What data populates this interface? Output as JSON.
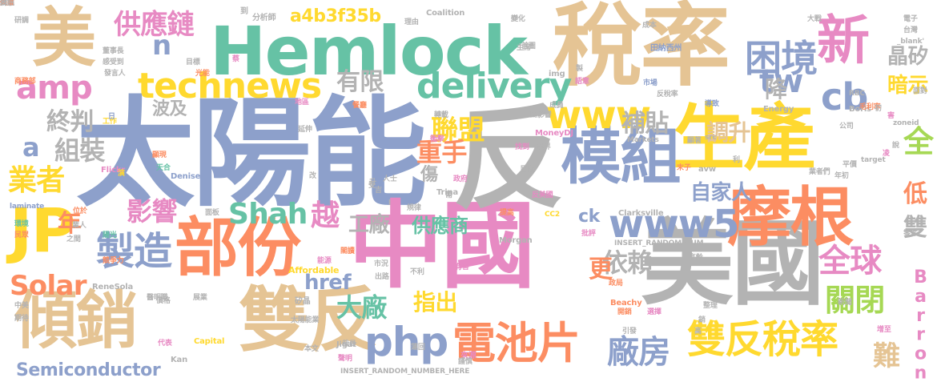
{
  "words": [
    {
      "text": "太陽能",
      "color": "#8da0cb"
    },
    {
      "text": "稅率",
      "color": "#e5c494"
    },
    {
      "text": "中國",
      "color": "#e78ac3"
    },
    {
      "text": "反",
      "color": "#b3b3b3"
    },
    {
      "text": "美國",
      "color": "#b3b3b3"
    },
    {
      "text": "Hemlock",
      "color": "#66c2a5"
    },
    {
      "text": "生產",
      "color": "#ffd92f"
    },
    {
      "text": "摩根",
      "color": "#fc8d62"
    },
    {
      "text": "雙反",
      "color": "#e5c494"
    },
    {
      "text": "部份",
      "color": "#fc8d62"
    },
    {
      "text": "傾銷",
      "color": "#e5c494"
    },
    {
      "text": "模組",
      "color": "#8da0cb"
    },
    {
      "text": "美",
      "color": "#e5c494"
    },
    {
      "text": "新",
      "color": "#e78ac3"
    },
    {
      "text": "JP",
      "color": "#ffd92f"
    },
    {
      "text": "technews",
      "color": "#ffd92f"
    },
    {
      "text": "delivery",
      "color": "#66c2a5"
    },
    {
      "text": "電池片",
      "color": "#fc8d62"
    },
    {
      "text": "雙反稅率",
      "color": "#ffd92f"
    },
    {
      "text": "www5",
      "color": "#8da0cb"
    },
    {
      "text": "www",
      "color": "#ffd92f"
    },
    {
      "text": "製造",
      "color": "#8da0cb"
    },
    {
      "text": "amp",
      "color": "#e78ac3"
    },
    {
      "text": "php",
      "color": "#8da0cb"
    },
    {
      "text": "困境",
      "color": "#8da0cb"
    },
    {
      "text": "cb",
      "color": "#8da0cb"
    },
    {
      "text": "tw",
      "color": "#8da0cb"
    },
    {
      "text": "全球",
      "color": "#e78ac3"
    },
    {
      "text": "關閉",
      "color": "#a6d854"
    },
    {
      "text": "廠房",
      "color": "#8da0cb"
    },
    {
      "text": "Solar",
      "color": "#fc8d62"
    },
    {
      "text": "Shah",
      "color": "#66c2a5"
    },
    {
      "text": "業者",
      "color": "#ffd92f"
    },
    {
      "text": "供應鏈",
      "color": "#e78ac3"
    },
    {
      "text": "聯盟",
      "color": "#ffd92f"
    },
    {
      "text": "有限",
      "color": "#b3b3b3"
    },
    {
      "text": "終判",
      "color": "#b3b3b3"
    },
    {
      "text": "組裝",
      "color": "#b3b3b3"
    },
    {
      "text": "影響",
      "color": "#e78ac3"
    },
    {
      "text": "越",
      "color": "#e78ac3"
    },
    {
      "text": "年",
      "color": "#fc8d62"
    },
    {
      "text": "a",
      "color": "#8da0cb"
    },
    {
      "text": "n",
      "color": "#8da0cb"
    },
    {
      "text": "a4b3f35b",
      "color": "#ffd92f"
    },
    {
      "text": "補貼",
      "color": "#b3b3b3"
    },
    {
      "text": "自家人",
      "color": "#8da0cb"
    },
    {
      "text": "大廠",
      "color": "#66c2a5"
    },
    {
      "text": "依賴",
      "color": "#b3b3b3"
    },
    {
      "text": "工廠",
      "color": "#b3b3b3"
    },
    {
      "text": "供應商",
      "color": "#66c2a5"
    },
    {
      "text": "重手",
      "color": "#fc8d62"
    },
    {
      "text": "指出",
      "color": "#ffd92f"
    },
    {
      "text": "href",
      "color": "#8da0cb"
    },
    {
      "text": "Semiconductor",
      "color": "#8da0cb"
    },
    {
      "text": "調升",
      "color": "#e5c494"
    },
    {
      "text": "難",
      "color": "#e5c494"
    },
    {
      "text": "全",
      "color": "#a6d854"
    },
    {
      "text": "低",
      "color": "#fc8d62"
    },
    {
      "text": "雙",
      "color": "#b3b3b3"
    },
    {
      "text": "晶矽",
      "color": "#b3b3b3"
    },
    {
      "text": "暗示",
      "color": "#ffd92f"
    },
    {
      "text": "Barron",
      "color": "#e78ac3"
    },
    {
      "text": "降",
      "color": "#b3b3b3"
    },
    {
      "text": "波及",
      "color": "#b3b3b3"
    },
    {
      "text": "傷",
      "color": "#b3b3b3"
    },
    {
      "text": "更",
      "color": "#fc8d62"
    },
    {
      "text": "ck",
      "color": "#8da0cb"
    },
    {
      "text": "INSERT_RANDOM_NUMBER_HERE",
      "color": "#b3b3b3"
    },
    {
      "text": "INSERT_RANDOM_NUM",
      "color": "#b3b3b3"
    },
    {
      "text": "Clarksville",
      "color": "#b3b3b3"
    },
    {
      "text": "Morgan",
      "color": "#b3b3b3"
    },
    {
      "text": "Affordable",
      "color": "#ffd92f"
    },
    {
      "text": "ReneSola",
      "color": "#b3b3b3"
    },
    {
      "text": "Trina",
      "color": "#b3b3b3"
    },
    {
      "text": "Denise",
      "color": "#8da0cb"
    },
    {
      "text": "Capital",
      "color": "#ffd92f"
    },
    {
      "text": "Energy",
      "color": "#b3b3b3"
    },
    {
      "text": "Coalition",
      "color": "#b3b3b3"
    },
    {
      "text": "MoneyDJ",
      "color": "#e78ac3"
    },
    {
      "text": "Markets",
      "color": "#b3b3b3"
    },
    {
      "text": "Beachy",
      "color": "#fc8d62"
    },
    {
      "text": "Jigar",
      "color": "#b3b3b3"
    },
    {
      "text": "Kan",
      "color": "#b3b3b3"
    },
    {
      "text": "Flickr",
      "color": "#e78ac3"
    },
    {
      "text": "zoneid",
      "color": "#b3b3b3"
    },
    {
      "text": "_blank'",
      "color": "#b3b3b3"
    },
    {
      "text": "Boris",
      "color": "#b3b3b3"
    },
    {
      "text": "laminate",
      "color": "#8da0cb"
    },
    {
      "text": "target",
      "color": "#b3b3b3"
    },
    {
      "text": "avw",
      "color": "#b3b3b3"
    },
    {
      "text": "src",
      "color": "#b3b3b3"
    },
    {
      "text": "img",
      "color": "#b3b3b3"
    },
    {
      "text": "RBC",
      "color": "#b3b3b3"
    },
    {
      "text": "CC2",
      "color": "#ffd92f"
    },
    {
      "text": "分析師",
      "color": "#b3b3b3"
    },
    {
      "text": "研調",
      "color": "#b3b3b3"
    },
    {
      "text": "董事長",
      "color": "#b3b3b3"
    },
    {
      "text": "感受到",
      "color": "#b3b3b3"
    },
    {
      "text": "發言人",
      "color": "#b3b3b3"
    },
    {
      "text": "商務部",
      "color": "#fc8d62"
    },
    {
      "text": "工作",
      "color": "#ffd92f"
    },
    {
      "text": "顯現",
      "color": "#fc8d62"
    },
    {
      "text": "天合",
      "color": "#66c2a5"
    },
    {
      "text": "陽光",
      "color": "#66c2a5"
    },
    {
      "text": "競爭力",
      "color": "#fc8d62"
    },
    {
      "text": "環境",
      "color": "#66c2a5"
    },
    {
      "text": "民眾",
      "color": "#fc8d62"
    },
    {
      "text": "餐廳",
      "color": "#fc8d62"
    },
    {
      "text": "地區",
      "color": "#e78ac3"
    },
    {
      "text": "延伸",
      "color": "#b3b3b3"
    },
    {
      "text": "找到",
      "color": "#e78ac3"
    },
    {
      "text": "業界",
      "color": "#b3b3b3"
    },
    {
      "text": "國際",
      "color": "#b3b3b3"
    },
    {
      "text": "反美國",
      "color": "#e78ac3"
    },
    {
      "text": "提高",
      "color": "#fc8d62"
    },
    {
      "text": "批評",
      "color": "#e78ac3"
    },
    {
      "text": "反稅率",
      "color": "#b3b3b3"
    },
    {
      "text": "市場",
      "color": "#8da0cb"
    },
    {
      "text": "田納西州",
      "color": "#8da0cb"
    },
    {
      "text": "成員",
      "color": "#b3b3b3"
    },
    {
      "text": "高齡",
      "color": "#b3b3b3"
    },
    {
      "text": "新聞",
      "color": "#b3b3b3"
    },
    {
      "text": "來源",
      "color": "#e78ac3"
    },
    {
      "text": "聲明",
      "color": "#e78ac3"
    },
    {
      "text": "太陽能業",
      "color": "#b3b3b3"
    },
    {
      "text": "矽晶",
      "color": "#b3b3b3"
    },
    {
      "text": "市況",
      "color": "#b3b3b3"
    },
    {
      "text": "出路",
      "color": "#b3b3b3"
    },
    {
      "text": "能源",
      "color": "#e78ac3"
    },
    {
      "text": "閣讀",
      "color": "#fc8d62"
    },
    {
      "text": "本文",
      "color": "#b3b3b3"
    },
    {
      "text": "代表",
      "color": "#e78ac3"
    },
    {
      "text": "裁員",
      "color": "#b3b3b3"
    },
    {
      "text": "引發",
      "color": "#b3b3b3"
    },
    {
      "text": "選擇",
      "color": "#e78ac3"
    },
    {
      "text": "毛利率",
      "color": "#fc8d62"
    },
    {
      "text": "導致",
      "color": "#8da0cb"
    },
    {
      "text": "平價",
      "color": "#b3b3b3"
    },
    {
      "text": "公司",
      "color": "#b3b3b3"
    },
    {
      "text": "增至",
      "color": "#e78ac3"
    },
    {
      "text": "電子",
      "color": "#b3b3b3"
    },
    {
      "text": "台灣",
      "color": "#b3b3b3"
    },
    {
      "text": "大戰",
      "color": "#b3b3b3"
    },
    {
      "text": "年初",
      "color": "#b3b3b3"
    },
    {
      "text": "零件",
      "color": "#b3b3b3"
    },
    {
      "text": "面對",
      "color": "#b3b3b3"
    },
    {
      "text": "理由",
      "color": "#b3b3b3"
    },
    {
      "text": "變化",
      "color": "#b3b3b3"
    },
    {
      "text": "首圖",
      "color": "#b3b3b3"
    },
    {
      "text": "主席",
      "color": "#b3b3b3"
    },
    {
      "text": "成本",
      "color": "#b3b3b3"
    },
    {
      "text": "蔡",
      "color": "#e78ac3"
    },
    {
      "text": "目標",
      "color": "#b3b3b3"
    },
    {
      "text": "光能",
      "color": "#fc8d62"
    },
    {
      "text": "醫明職",
      "color": "#b3b3b3"
    },
    {
      "text": "價格",
      "color": "#b3b3b3"
    },
    {
      "text": "中美",
      "color": "#b3b3b3"
    },
    {
      "text": "期待",
      "color": "#b3b3b3"
    },
    {
      "text": "位於",
      "color": "#fc8d62"
    },
    {
      "text": "業人",
      "color": "#b3b3b3"
    },
    {
      "text": "之間",
      "color": "#b3b3b3"
    },
    {
      "text": "面板",
      "color": "#b3b3b3"
    },
    {
      "text": "規律",
      "color": "#b3b3b3"
    },
    {
      "text": "轉載",
      "color": "#b3b3b3"
    },
    {
      "text": "人士",
      "color": "#b3b3b3"
    },
    {
      "text": "政府",
      "color": "#e78ac3"
    },
    {
      "text": "衝擊",
      "color": "#e78ac3"
    },
    {
      "text": "有害",
      "color": "#e78ac3"
    },
    {
      "text": "不利",
      "color": "#b3b3b3"
    },
    {
      "text": "高",
      "color": "#b3b3b3"
    },
    {
      "text": "銷",
      "color": "#b3b3b3"
    },
    {
      "text": "政局",
      "color": "#fc8d62"
    },
    {
      "text": "開銷",
      "color": "#fc8d62"
    },
    {
      "text": "謹慎",
      "color": "#b3b3b3"
    },
    {
      "text": "整理",
      "color": "#b3b3b3"
    },
    {
      "text": "蓮回",
      "color": "#b3b3b3"
    },
    {
      "text": "展業",
      "color": "#b3b3b3"
    },
    {
      "text": "顯著",
      "color": "#b3b3b3"
    },
    {
      "text": "製",
      "color": "#b3b3b3"
    },
    {
      "text": "日",
      "color": "#8da0cb"
    },
    {
      "text": "業者們",
      "color": "#b3b3b3"
    },
    {
      "text": "初",
      "color": "#b3b3b3"
    },
    {
      "text": "受",
      "color": "#b3b3b3"
    },
    {
      "text": "改",
      "color": "#b3b3b3"
    },
    {
      "text": "升",
      "color": "#b3b3b3"
    },
    {
      "text": "吉",
      "color": "#b3b3b3"
    },
    {
      "text": "演",
      "color": "#ffd92f"
    },
    {
      "text": "說",
      "color": "#b3b3b3"
    },
    {
      "text": "害",
      "color": "#e78ac3"
    },
    {
      "text": "到",
      "color": "#b3b3b3"
    },
    {
      "text": "凌",
      "color": "#e78ac3"
    },
    {
      "text": "末子",
      "color": "#fc8d62"
    },
    {
      "text": "利",
      "color": "#b3b3b3"
    },
    {
      "text": "需",
      "color": "#b3b3b3"
    },
    {
      "text": "l",
      "color": "#b3b3b3"
    },
    {
      "text": "T",
      "color": "#b3b3b3"
    },
    {
      "text": "語意",
      "color": "#e78ac3"
    },
    {
      "text": "閣影響",
      "color": "#b3b3b3"
    },
    {
      "text": "競爭",
      "color": "#b3b3b3"
    },
    {
      "text": "利益",
      "color": "#b3b3b3"
    },
    {
      "text": "到",
      "color": "#b3b3b3"
    },
    {
      "text": "代",
      "color": "#b3b3b3"
    },
    {
      "text": "失業",
      "color": "#fc8d62"
    },
    {
      "text": "資訊",
      "color": "#b3b3b3"
    }
  ]
}
